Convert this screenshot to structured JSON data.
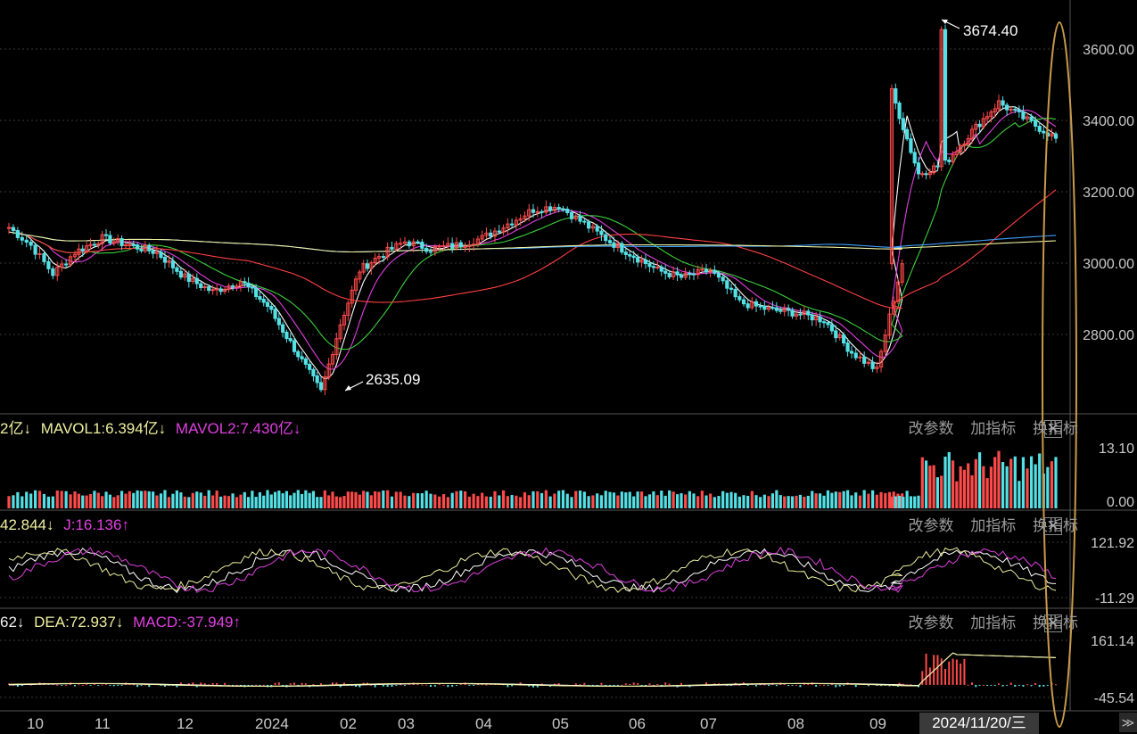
{
  "main": {
    "high_label": "3674.40",
    "low_label": "2635.09",
    "y_ticks": [
      "3600.00",
      "3400.00",
      "3200.00",
      "3000.00",
      "2800.00"
    ],
    "y_tick_values": [
      3600,
      3400,
      3200,
      3000,
      2800
    ]
  },
  "vol_panel": {
    "labels": [
      "2亿↓",
      "MAVOL1:6.394亿↓",
      "MAVOL2:7.430亿↓"
    ],
    "label_colors": [
      "#f0f0a0",
      "#f0f0a0",
      "#e040e0"
    ],
    "y_ticks": [
      "13.10",
      "0.00"
    ]
  },
  "kdj_panel": {
    "labels": [
      "42.844↓",
      "J:16.136↑"
    ],
    "label_colors": [
      "#f0f0a0",
      "#e040e0"
    ],
    "y_ticks": [
      "121.92",
      "-11.29"
    ]
  },
  "macd_panel": {
    "labels": [
      "62↓",
      "DEA:72.937↓",
      "MACD:-37.949↑"
    ],
    "label_colors": [
      "#f0f0f0",
      "#f0f0a0",
      "#e040e0"
    ],
    "y_ticks": [
      "161.14",
      "-45.54"
    ]
  },
  "controls": {
    "modify": "改参数",
    "add": "加指标",
    "switch": "换指标",
    "close": "✕"
  },
  "x_axis": {
    "ticks": [
      "10",
      "11",
      "12",
      "2024",
      "02",
      "03",
      "04",
      "05",
      "06",
      "07",
      "08",
      "09"
    ],
    "cursor_date": "2024/11/20/三",
    "scroll_icon": "≫"
  },
  "colors": {
    "up": "#ff4a4a",
    "down": "#54e1e6",
    "ma5": "#ffffff",
    "ma10": "#e040e0",
    "ma20": "#3ccf3c",
    "ma60": "#ff4040",
    "ma120": "#40a0ff",
    "ma250": "#f0f0a0",
    "highlight_ring": "#c79a4a"
  },
  "chart_data": {
    "type": "candlestick",
    "instrument_hint": "index, daily K-line",
    "price_ylim": [
      2600,
      3700
    ],
    "annotated_high": 3674.4,
    "annotated_low": 2635.09,
    "x_ticks": [
      "10",
      "11",
      "12",
      "2024",
      "02",
      "03",
      "04",
      "05",
      "06",
      "07",
      "08",
      "09"
    ],
    "close_path": [
      {
        "month": "10",
        "close": 3100
      },
      {
        "month": "10",
        "close": 3050
      },
      {
        "month": "10",
        "close": 2970
      },
      {
        "month": "11",
        "close": 3030
      },
      {
        "month": "11",
        "close": 3070
      },
      {
        "month": "11",
        "close": 3050
      },
      {
        "month": "12",
        "close": 3030
      },
      {
        "month": "12",
        "close": 2960
      },
      {
        "month": "12",
        "close": 2920
      },
      {
        "month": "2024",
        "close": 2950
      },
      {
        "month": "2024",
        "close": 2880
      },
      {
        "month": "2024",
        "close": 2760
      },
      {
        "month": "02",
        "close": 2640
      },
      {
        "month": "02",
        "close": 2830
      },
      {
        "month": "02",
        "close": 2980
      },
      {
        "month": "03",
        "close": 3020
      },
      {
        "month": "03",
        "close": 3060
      },
      {
        "month": "03",
        "close": 3040
      },
      {
        "month": "04",
        "close": 3050
      },
      {
        "month": "04",
        "close": 3070
      },
      {
        "month": "04",
        "close": 3110
      },
      {
        "month": "05",
        "close": 3150
      },
      {
        "month": "05",
        "close": 3160
      },
      {
        "month": "05",
        "close": 3110
      },
      {
        "month": "06",
        "close": 3060
      },
      {
        "month": "06",
        "close": 3020
      },
      {
        "month": "06",
        "close": 2980
      },
      {
        "month": "07",
        "close": 2960
      },
      {
        "month": "07",
        "close": 2980
      },
      {
        "month": "07",
        "close": 2890
      },
      {
        "month": "08",
        "close": 2870
      },
      {
        "month": "08",
        "close": 2860
      },
      {
        "month": "08",
        "close": 2840
      },
      {
        "month": "09",
        "close": 2750
      },
      {
        "month": "09",
        "close": 2700
      },
      {
        "month": "09",
        "close": 3000
      },
      {
        "month": "10",
        "close": 3480
      },
      {
        "month": "10",
        "close": 3250
      },
      {
        "month": "10",
        "close": 3280
      },
      {
        "month": "11",
        "close": 3370
      },
      {
        "month": "11",
        "close": 3450
      },
      {
        "month": "11",
        "close": 3350
      }
    ],
    "volume_ylim": [
      0,
      13.1
    ],
    "kdj_ylim": [
      -11.29,
      121.92
    ],
    "macd_ylim": [
      -45.54,
      161.14
    ],
    "indicator_readouts": {
      "MAVOL1": "6.394亿",
      "MAVOL2": "7.430亿",
      "J": 16.136,
      "DEA": 72.937,
      "MACD": -37.949
    }
  }
}
